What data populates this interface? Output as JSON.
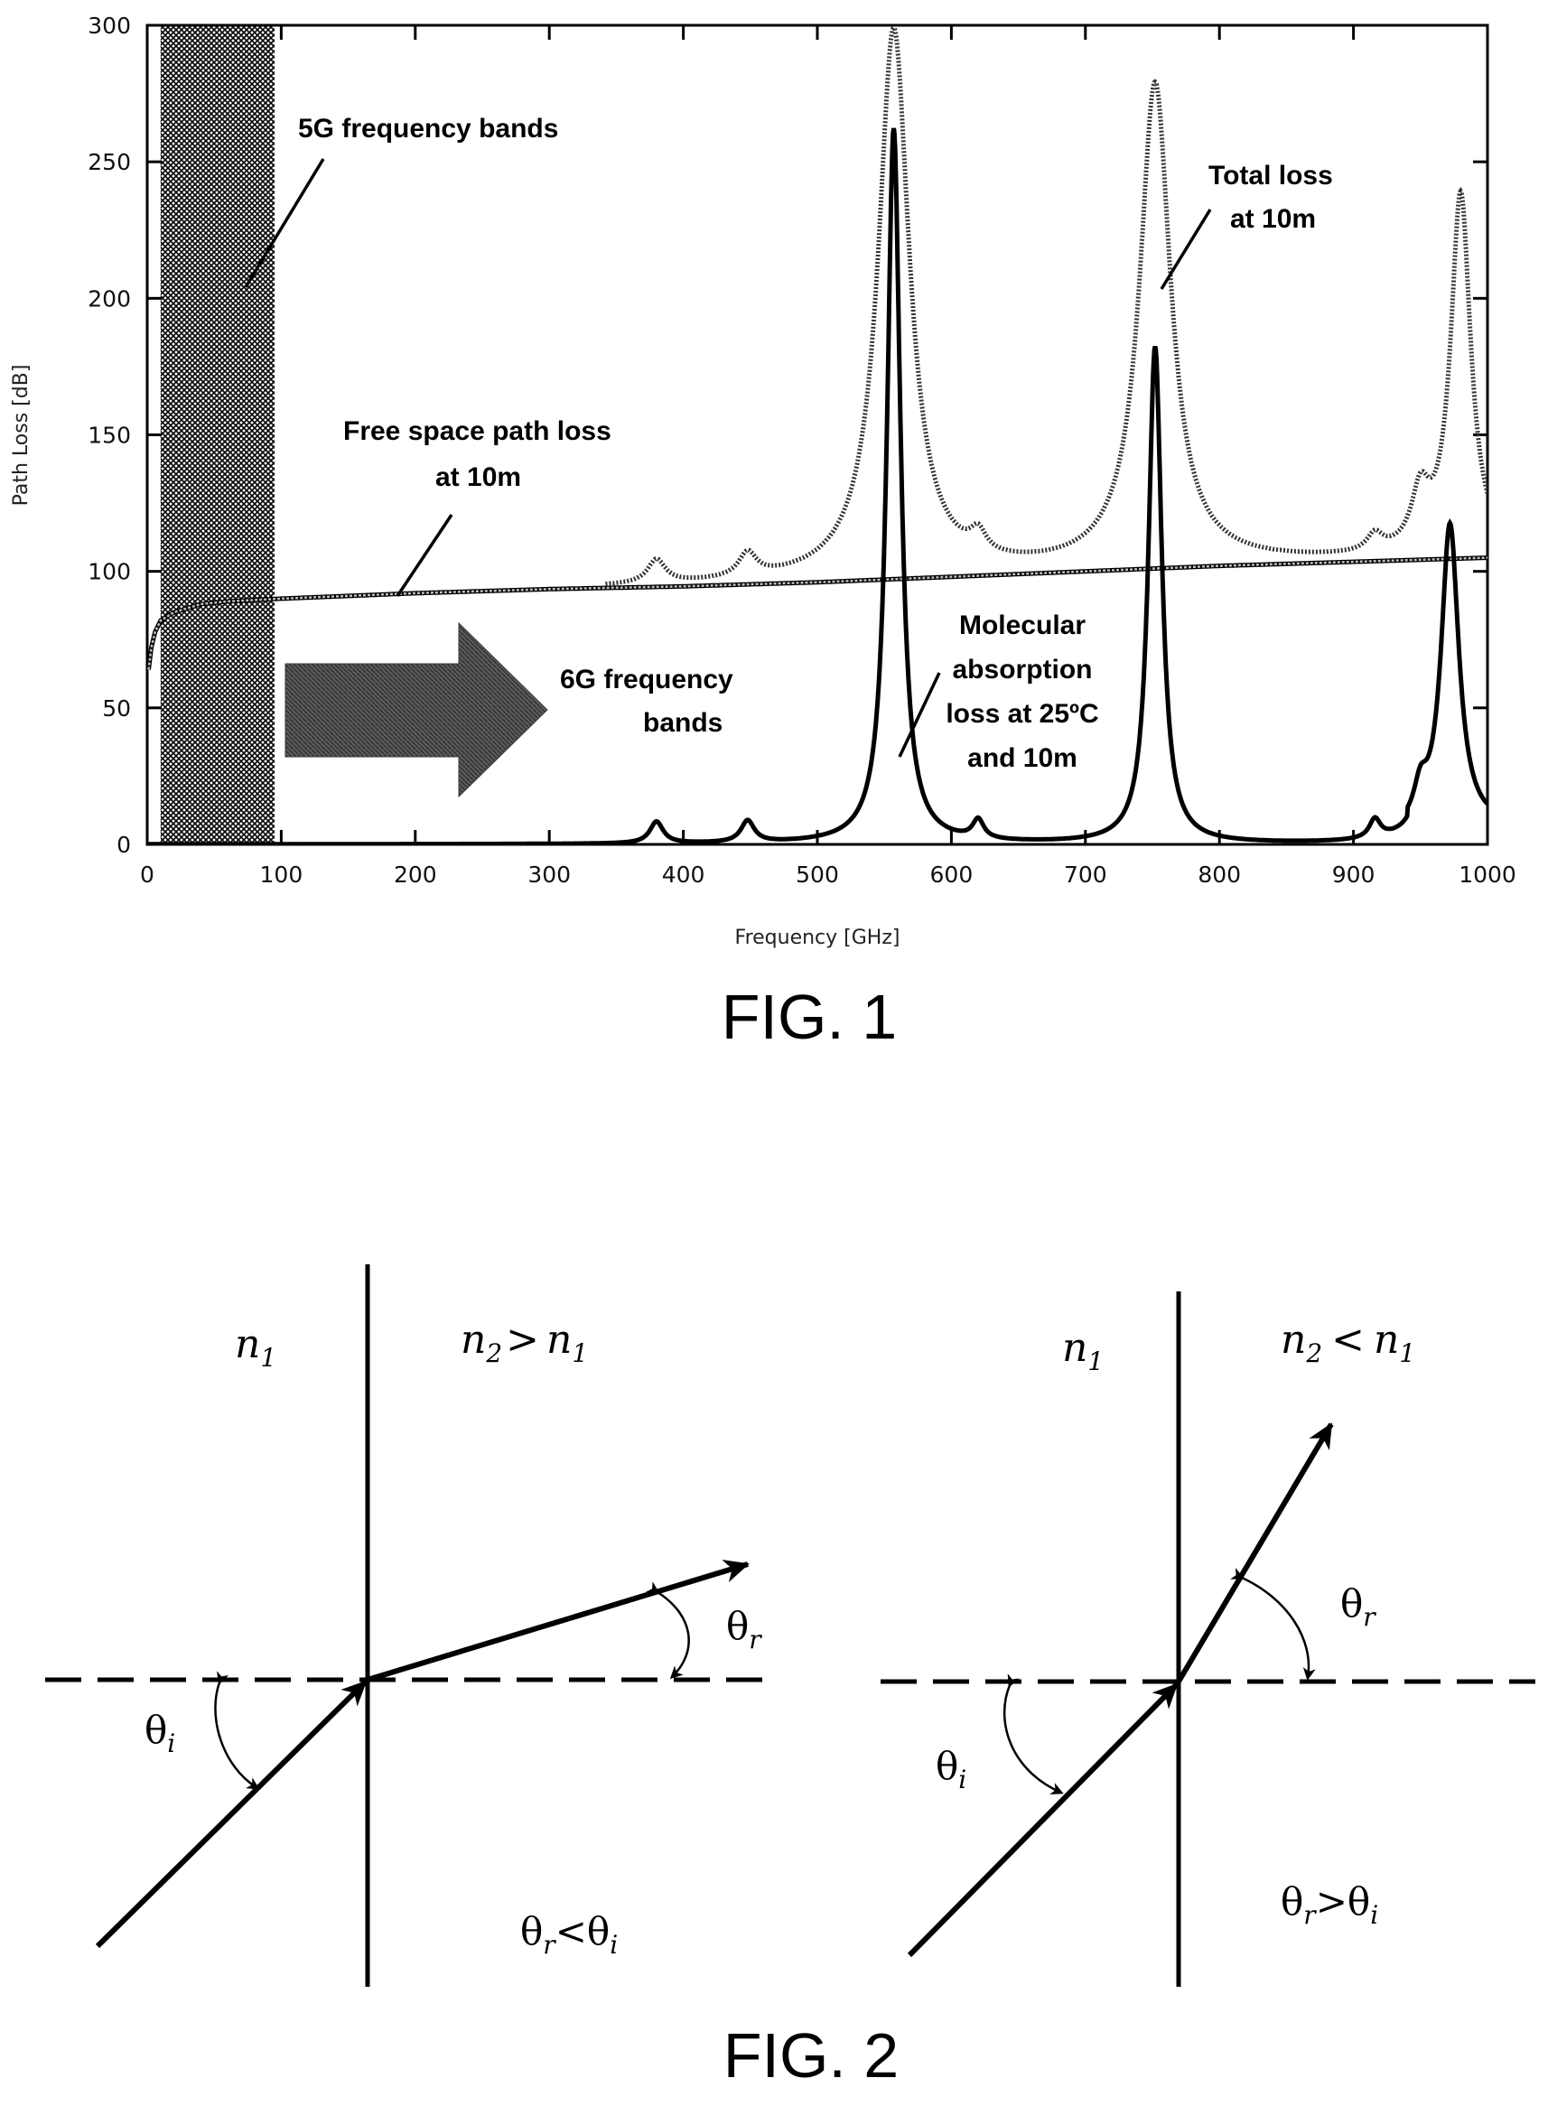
{
  "fig1": {
    "caption": "FIG. 1",
    "chart_data": {
      "type": "line",
      "xlabel": "Frequency [GHz]",
      "ylabel": "Path Loss [dB]",
      "xlim": [
        0,
        1000
      ],
      "ylim": [
        0,
        300
      ],
      "x_ticks": [
        "0",
        "100",
        "200",
        "300",
        "400",
        "500",
        "600",
        "700",
        "800",
        "900",
        "1000"
      ],
      "y_ticks": [
        "0",
        "50",
        "100",
        "150",
        "200",
        "250",
        "300"
      ],
      "grid": false,
      "legend": "none",
      "series": [
        {
          "name": "Free space path loss at 10m",
          "style": "hatched",
          "x": [
            1,
            3,
            6,
            10,
            20,
            40,
            60,
            100,
            200,
            300,
            400,
            500,
            600,
            700,
            800,
            900,
            1000
          ],
          "y": [
            64,
            72,
            78,
            82,
            85,
            88,
            89,
            90,
            92,
            93.5,
            94.5,
            96,
            98,
            100,
            102,
            103.5,
            105
          ]
        },
        {
          "name": "Molecular absorption loss at 25ºC and 10m",
          "style": "solid",
          "peaks": [
            {
              "x": 380,
              "y": 8,
              "w": 6
            },
            {
              "x": 448,
              "y": 8,
              "w": 6
            },
            {
              "x": 557,
              "y": 262,
              "w": 6
            },
            {
              "x": 620,
              "y": 7,
              "w": 5
            },
            {
              "x": 752,
              "y": 182,
              "w": 6
            },
            {
              "x": 916,
              "y": 7,
              "w": 5
            },
            {
              "x": 950,
              "y": 12,
              "w": 6
            },
            {
              "x": 972,
              "y": 112,
              "w": 8
            }
          ]
        },
        {
          "name": "Total loss at 10m",
          "style": "dotted",
          "peaks": [
            {
              "x": 380,
              "y": 103,
              "w": 8
            },
            {
              "x": 448,
              "y": 104,
              "w": 8
            },
            {
              "x": 557,
              "y": 298,
              "w": 14
            },
            {
              "x": 620,
              "y": 106,
              "w": 7
            },
            {
              "x": 752,
              "y": 278,
              "w": 14
            },
            {
              "x": 916,
              "y": 110,
              "w": 7
            },
            {
              "x": 950,
              "y": 124,
              "w": 8
            },
            {
              "x": 980,
              "y": 237,
              "w": 9
            }
          ]
        }
      ],
      "annotations": {
        "band5g": "5G frequency bands",
        "band6g_line1": "6G frequency bands",
        "band6g_line2": "bands",
        "fspl_line1": "Free space path loss",
        "fspl_line2": "at 10m",
        "total_line1": "Total loss",
        "total_line2": "at 10m",
        "mol_line1": "Molecular",
        "mol_line2": "absorption",
        "mol_line3": "loss at 25ºC",
        "mol_line4": "and 10m"
      },
      "shaded_band_ghz": [
        10,
        95
      ]
    }
  },
  "fig2": {
    "caption": "FIG. 2",
    "left": {
      "medium1": "n",
      "medium1_sub": "1",
      "medium2_a": "n",
      "medium2_a_sub": "2",
      "medium2_op": ">",
      "medium2_b": "n",
      "medium2_b_sub": "1",
      "theta_i": "θ",
      "theta_i_sub": "i",
      "theta_r": "θ",
      "theta_r_sub": "r",
      "relation_a": "θ",
      "relation_a_sub": "r",
      "relation_op": "<",
      "relation_b": "θ",
      "relation_b_sub": "i"
    },
    "right": {
      "medium1": "n",
      "medium1_sub": "1",
      "medium2_a": "n",
      "medium2_a_sub": "2",
      "medium2_op": "<",
      "medium2_b": "n",
      "medium2_b_sub": "1",
      "theta_i": "θ",
      "theta_i_sub": "i",
      "theta_r": "θ",
      "theta_r_sub": "r",
      "relation_a": "θ",
      "relation_a_sub": "r",
      "relation_op": ">",
      "relation_b": "θ",
      "relation_b_sub": "i"
    }
  }
}
